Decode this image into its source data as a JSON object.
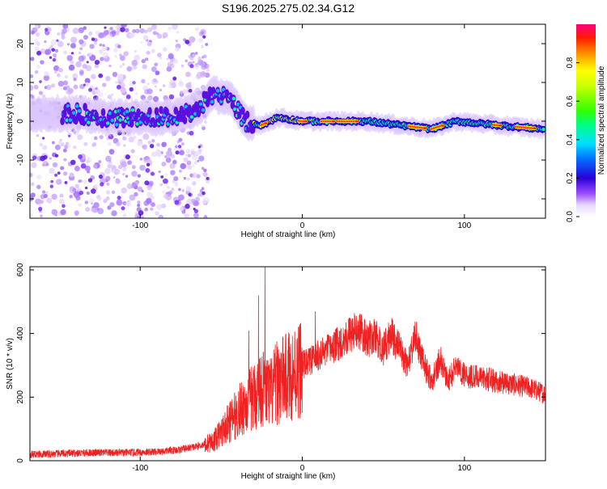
{
  "title": "S196.2025.275.02.34.G12",
  "colors": {
    "snr_line": "#ee2222",
    "frame": "#000000"
  },
  "chart_data": [
    {
      "type": "heatmap",
      "name": "spectrogram",
      "xlabel": "Height of straight line (km)",
      "ylabel": "Frequency (Hz)",
      "xlim": [
        -168,
        150
      ],
      "ylim": [
        -25,
        25
      ],
      "xticks": [
        -100,
        0,
        100
      ],
      "xtick_labels": [
        "-100",
        "0",
        "100"
      ],
      "yticks": [
        -20,
        -10,
        0,
        10,
        20
      ],
      "ytick_labels": [
        "-20",
        "-10",
        "0",
        "10",
        "20"
      ],
      "colorbar": {
        "label": "Normalized spectral amplitude",
        "range": [
          0,
          1
        ],
        "ticks": [
          0.0,
          0.2,
          0.4,
          0.6,
          0.8
        ],
        "tick_labels": [
          "0.0",
          "0.2",
          "0.4",
          "0.6",
          "0.8"
        ]
      },
      "ridge": [
        {
          "x": -140,
          "f": 2
        },
        {
          "x": -120,
          "f": 1
        },
        {
          "x": -100,
          "f": 1
        },
        {
          "x": -80,
          "f": 1
        },
        {
          "x": -65,
          "f": 3
        },
        {
          "x": -55,
          "f": 7
        },
        {
          "x": -45,
          "f": 6
        },
        {
          "x": -35,
          "f": 0
        },
        {
          "x": -25,
          "f": -1
        },
        {
          "x": -15,
          "f": 1
        },
        {
          "x": 0,
          "f": 0
        },
        {
          "x": 20,
          "f": 0
        },
        {
          "x": 40,
          "f": 0
        },
        {
          "x": 60,
          "f": -1
        },
        {
          "x": 80,
          "f": -2
        },
        {
          "x": 95,
          "f": 0
        },
        {
          "x": 120,
          "f": -1
        },
        {
          "x": 148,
          "f": -2
        }
      ]
    },
    {
      "type": "line",
      "name": "snr",
      "xlabel": "Height of straight line (km)",
      "ylabel": "SNR (10 * v/v)",
      "xlim": [
        -168,
        150
      ],
      "ylim": [
        0,
        610
      ],
      "xticks": [
        -100,
        0,
        100
      ],
      "xtick_labels": [
        "-100",
        "0",
        "100"
      ],
      "yticks": [
        0,
        200,
        400,
        600
      ],
      "ytick_labels": [
        "0",
        "200",
        "400",
        "600"
      ],
      "series": [
        {
          "name": "SNR",
          "x": [
            -168,
            -150,
            -130,
            -110,
            -90,
            -75,
            -65,
            -55,
            -50,
            -45,
            -40,
            -35,
            -30,
            -25,
            -20,
            -15,
            -10,
            -5,
            0,
            10,
            20,
            30,
            35,
            40,
            45,
            50,
            55,
            60,
            65,
            70,
            75,
            80,
            85,
            90,
            95,
            100,
            110,
            120,
            130,
            140,
            150
          ],
          "y": [
            20,
            22,
            25,
            25,
            28,
            35,
            45,
            60,
            90,
            120,
            150,
            180,
            200,
            230,
            210,
            250,
            260,
            280,
            300,
            330,
            360,
            400,
            410,
            380,
            390,
            350,
            400,
            350,
            300,
            390,
            300,
            250,
            320,
            250,
            300,
            270,
            260,
            250,
            240,
            230,
            210
          ]
        }
      ],
      "spikes": [
        {
          "x": -23,
          "y": 610
        },
        {
          "x": -27,
          "y": 520
        },
        {
          "x": -33,
          "y": 410
        },
        {
          "x": 8,
          "y": 470
        }
      ]
    }
  ]
}
